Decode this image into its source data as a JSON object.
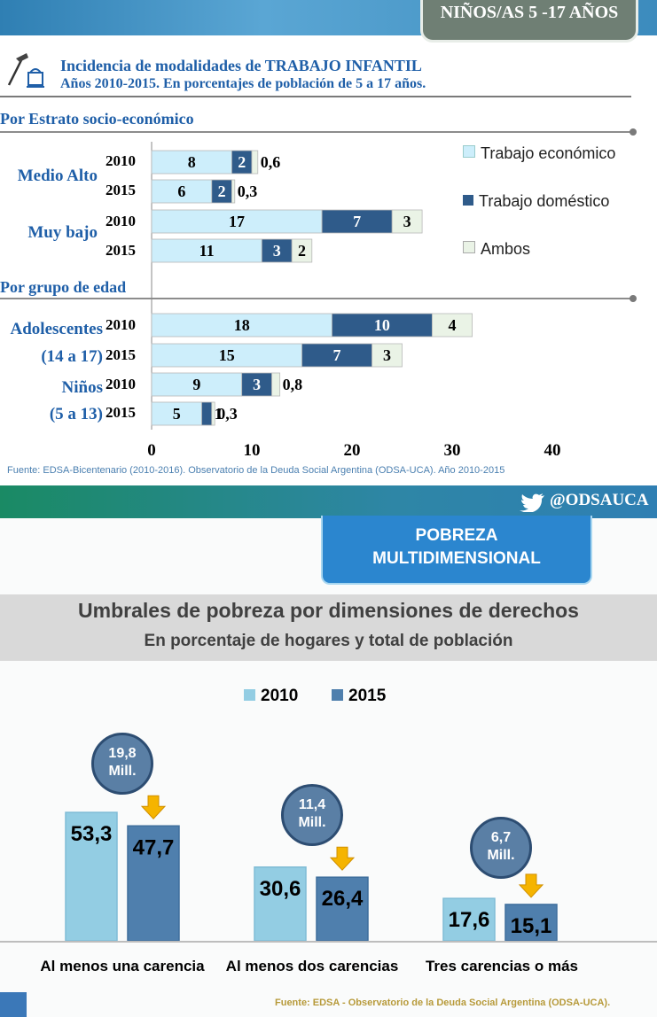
{
  "top_panel": {
    "badge": "NIÑOS/AS 5 -17 AÑOS",
    "title": "Incidencia de modalidades de TRABAJO INFANTIL",
    "subtitle": "Años 2010-2015. En porcentajes de población de 5 a 17 años.",
    "section1": "Por Estrato socio-económico",
    "section2": "Por grupo de edad",
    "groups": [
      "Medio Alto",
      "Muy bajo",
      "Adolescentes",
      "(14 a 17)",
      "Niños",
      "(5 a 13)"
    ],
    "source": "Fuente: EDSA-Bicentenario (2010-2016). Observatorio de la Deuda Social Argentina (ODSA-UCA). Año 2010-2015"
  },
  "twitter": {
    "handle": "@ODSAUCA"
  },
  "bottom_panel": {
    "badge_line1": "POBREZA",
    "badge_line2": "MULTIDIMENSIONAL",
    "title": "Umbrales de pobreza por dimensiones de derechos",
    "subtitle": "En porcentaje de hogares y total de población",
    "legend": [
      "2010",
      "2015"
    ],
    "millions": [
      {
        "value": "19,8",
        "unit": "Mill."
      },
      {
        "value": "11,4",
        "unit": "Mill."
      },
      {
        "value": "6,7",
        "unit": "Mill."
      }
    ],
    "source": "Fuente: EDSA - Observatorio de la Deuda Social Argentina (ODSA-UCA)."
  },
  "chart_data": [
    {
      "type": "bar",
      "orientation": "horizontal",
      "stacked": true,
      "title": "Incidencia de modalidades de TRABAJO INFANTIL",
      "categories": [
        "Medio Alto 2010",
        "Medio Alto 2015",
        "Muy bajo 2010",
        "Muy bajo 2015",
        "Adolescentes (14 a 17) 2010",
        "Adolescentes (14 a 17) 2015",
        "Niños (5 a 13) 2010",
        "Niños (5 a 13) 2015"
      ],
      "row_years": [
        "2010",
        "2015",
        "2010",
        "2015",
        "2010",
        "2015",
        "2010",
        "2015"
      ],
      "series": [
        {
          "name": "Trabajo económico",
          "values": [
            8,
            6,
            17,
            11,
            18,
            15,
            9,
            5
          ],
          "labels": [
            "8",
            "6",
            "17",
            "11",
            "18",
            "15",
            "9",
            "5"
          ],
          "color": "#cdeefb"
        },
        {
          "name": "Trabajo doméstico",
          "values": [
            2,
            2,
            7,
            3,
            10,
            7,
            3,
            1
          ],
          "labels": [
            "2",
            "2",
            "7",
            "3",
            "10",
            "7",
            "3",
            "1"
          ],
          "color": "#2f5b8a"
        },
        {
          "name": "Ambos",
          "values": [
            0.6,
            0.3,
            3,
            2,
            4,
            3,
            0.8,
            0.3
          ],
          "labels": [
            "0,6",
            "0,3",
            "3",
            "2",
            "4",
            "3",
            "0,8",
            "0,3"
          ],
          "color": "#eaf3e6"
        }
      ],
      "xlim": [
        0,
        40
      ],
      "xticks": [
        "0",
        "10",
        "20",
        "30",
        "40"
      ],
      "legend_position": "right"
    },
    {
      "type": "bar",
      "title": "Umbrales de pobreza por dimensiones de derechos",
      "subtitle": "En porcentaje de hogares y total de población",
      "categories": [
        "Al menos una carencia",
        "Al menos dos carencias",
        "Tres carencias o más"
      ],
      "series": [
        {
          "name": "2010",
          "values": [
            53.3,
            30.6,
            17.6
          ],
          "labels": [
            "53,3",
            "30,6",
            "17,6"
          ],
          "color": "#93cde3"
        },
        {
          "name": "2015",
          "values": [
            47.7,
            26.4,
            15.1
          ],
          "labels": [
            "47,7",
            "26,4",
            "15,1"
          ],
          "color": "#4f7fad"
        }
      ],
      "ylim": [
        0,
        60
      ],
      "legend_position": "top"
    }
  ]
}
